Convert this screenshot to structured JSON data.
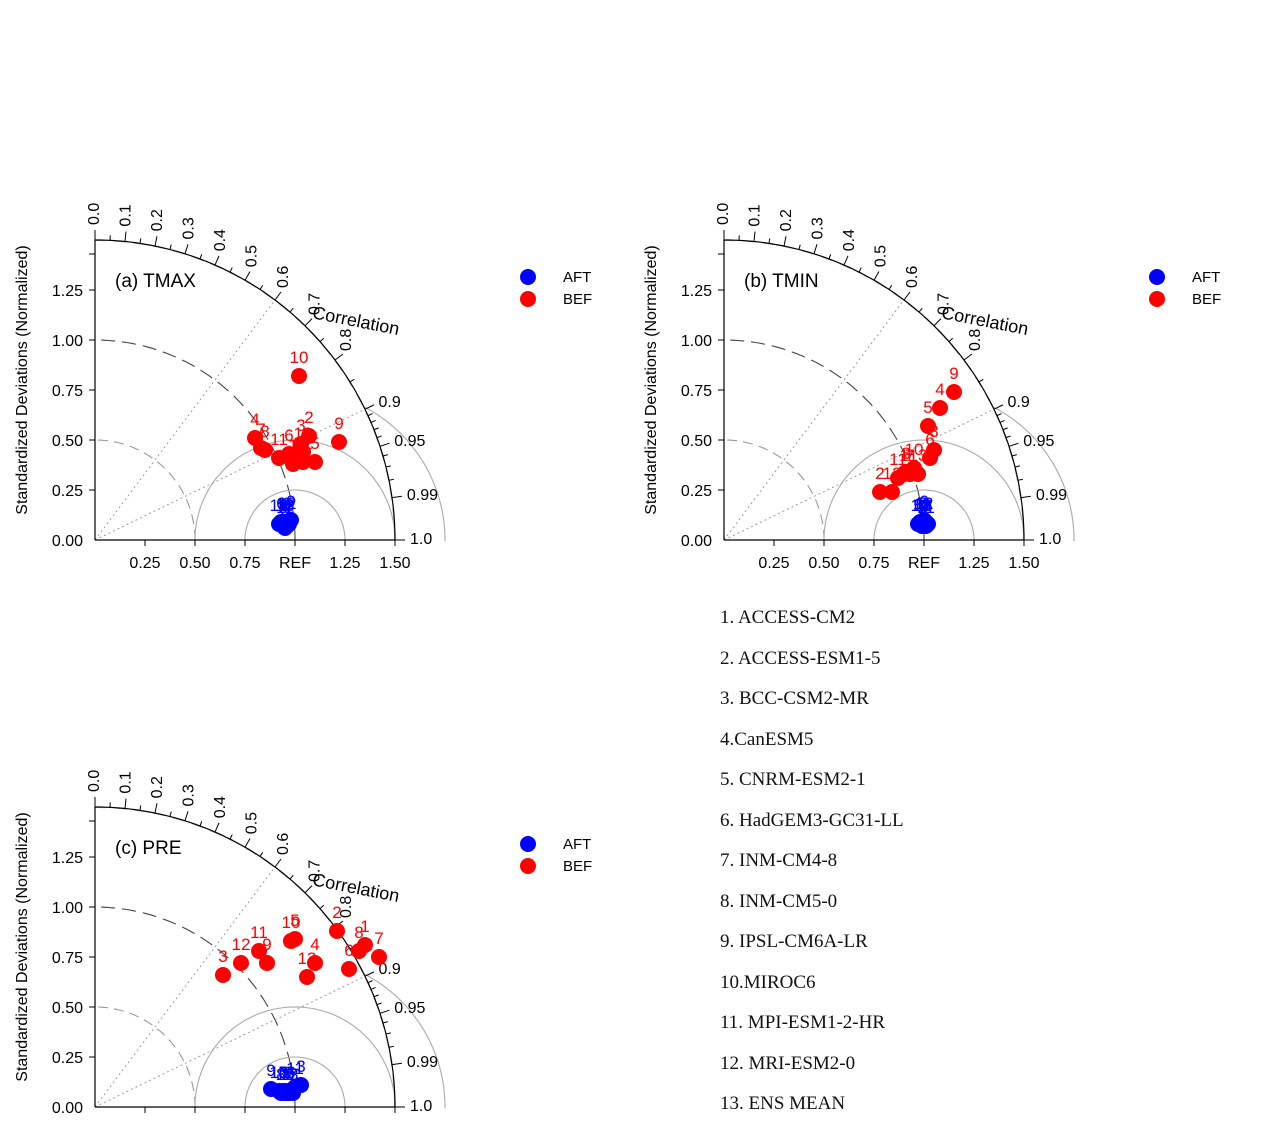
{
  "charts": {
    "ylabel": "Standardized Deviations (Normalized)",
    "corr_label": "Correlation",
    "ref_label": "REF",
    "std_ticks": [
      "0.25",
      "0.50",
      "0.75",
      "1.00",
      "1.25"
    ],
    "x_ticks": [
      "0.00",
      "0.25",
      "0.50",
      "0.75",
      "REF",
      "1.25",
      "1.50"
    ],
    "corr_ticks": [
      "0.0",
      "0.1",
      "0.2",
      "0.3",
      "0.4",
      "0.5",
      "0.6",
      "0.7",
      "0.8",
      "0.9",
      "0.95",
      "0.99",
      "1.0"
    ],
    "legend": [
      {
        "name": "AFT",
        "color": "#0000ff"
      },
      {
        "name": "BEF",
        "color": "#ff0000"
      }
    ]
  },
  "chart_data": [
    {
      "type": "scatter",
      "title": "(a) TMAX",
      "xlim": [
        0,
        1.5
      ],
      "ylim": [
        0,
        1.5
      ],
      "series": [
        {
          "name": "AFT",
          "color": "#0000ff",
          "points": [
            {
              "label": "1",
              "x": 0.95,
              "y": 0.08
            },
            {
              "label": "2",
              "x": 0.96,
              "y": 0.09
            },
            {
              "label": "3",
              "x": 0.94,
              "y": 0.07
            },
            {
              "label": "4",
              "x": 0.96,
              "y": 0.07
            },
            {
              "label": "5",
              "x": 0.95,
              "y": 0.06
            },
            {
              "label": "6",
              "x": 0.93,
              "y": 0.09
            },
            {
              "label": "7",
              "x": 0.97,
              "y": 0.08
            },
            {
              "label": "8",
              "x": 0.94,
              "y": 0.08
            },
            {
              "label": "9",
              "x": 0.98,
              "y": 0.1
            },
            {
              "label": "10",
              "x": 0.92,
              "y": 0.08
            },
            {
              "label": "11",
              "x": 0.95,
              "y": 0.07
            },
            {
              "label": "12",
              "x": 0.96,
              "y": 0.09
            },
            {
              "label": "13",
              "x": 0.95,
              "y": 0.08
            }
          ]
        },
        {
          "name": "BEF",
          "color": "#ff0000",
          "points": [
            {
              "label": "1",
              "x": 0.99,
              "y": 0.38
            },
            {
              "label": "2",
              "x": 1.07,
              "y": 0.52
            },
            {
              "label": "3",
              "x": 1.03,
              "y": 0.48
            },
            {
              "label": "4",
              "x": 0.8,
              "y": 0.51
            },
            {
              "label": "5",
              "x": 1.1,
              "y": 0.39
            },
            {
              "label": "6",
              "x": 0.97,
              "y": 0.43
            },
            {
              "label": "7",
              "x": 0.83,
              "y": 0.46
            },
            {
              "label": "8",
              "x": 0.85,
              "y": 0.45
            },
            {
              "label": "9",
              "x": 1.22,
              "y": 0.49
            },
            {
              "label": "10",
              "x": 1.02,
              "y": 0.82
            },
            {
              "label": "11",
              "x": 0.92,
              "y": 0.41
            },
            {
              "label": "12",
              "x": 1.04,
              "y": 0.39
            },
            {
              "label": "13",
              "x": 1.04,
              "y": 0.44
            }
          ]
        }
      ]
    },
    {
      "type": "scatter",
      "title": "(b) TMIN",
      "xlim": [
        0,
        1.5
      ],
      "ylim": [
        0,
        1.5
      ],
      "series": [
        {
          "name": "AFT",
          "color": "#0000ff",
          "points": [
            {
              "label": "1",
              "x": 0.98,
              "y": 0.09
            },
            {
              "label": "2",
              "x": 1.0,
              "y": 0.08
            },
            {
              "label": "3",
              "x": 0.99,
              "y": 0.07
            },
            {
              "label": "4",
              "x": 1.01,
              "y": 0.09
            },
            {
              "label": "5",
              "x": 0.97,
              "y": 0.08
            },
            {
              "label": "6",
              "x": 1.0,
              "y": 0.1
            },
            {
              "label": "7",
              "x": 0.99,
              "y": 0.09
            },
            {
              "label": "8",
              "x": 1.02,
              "y": 0.08
            },
            {
              "label": "9",
              "x": 1.0,
              "y": 0.07
            },
            {
              "label": "10",
              "x": 0.98,
              "y": 0.08
            },
            {
              "label": "11",
              "x": 1.01,
              "y": 0.07
            },
            {
              "label": "12",
              "x": 1.0,
              "y": 0.09
            },
            {
              "label": "13",
              "x": 0.99,
              "y": 0.08
            }
          ]
        },
        {
          "name": "BEF",
          "color": "#ff0000",
          "points": [
            {
              "label": "1",
              "x": 0.9,
              "y": 0.33
            },
            {
              "label": "2",
              "x": 0.78,
              "y": 0.24
            },
            {
              "label": "3",
              "x": 1.05,
              "y": 0.45
            },
            {
              "label": "4",
              "x": 1.08,
              "y": 0.66
            },
            {
              "label": "5",
              "x": 1.02,
              "y": 0.57
            },
            {
              "label": "6",
              "x": 1.03,
              "y": 0.41
            },
            {
              "label": "7",
              "x": 0.93,
              "y": 0.33
            },
            {
              "label": "8",
              "x": 0.91,
              "y": 0.34
            },
            {
              "label": "9",
              "x": 1.15,
              "y": 0.74
            },
            {
              "label": "10",
              "x": 0.95,
              "y": 0.36
            },
            {
              "label": "11",
              "x": 0.87,
              "y": 0.31
            },
            {
              "label": "12",
              "x": 0.84,
              "y": 0.24
            },
            {
              "label": "13",
              "x": 0.97,
              "y": 0.33
            }
          ]
        }
      ]
    },
    {
      "type": "scatter",
      "title": "(c) PRE",
      "xlim": [
        0,
        1.5
      ],
      "ylim": [
        0,
        1.5
      ],
      "series": [
        {
          "name": "AFT",
          "color": "#0000ff",
          "points": [
            {
              "label": "1",
              "x": 0.95,
              "y": 0.08
            },
            {
              "label": "2",
              "x": 0.97,
              "y": 0.08
            },
            {
              "label": "3",
              "x": 1.03,
              "y": 0.11
            },
            {
              "label": "4",
              "x": 0.96,
              "y": 0.07
            },
            {
              "label": "5",
              "x": 0.94,
              "y": 0.08
            },
            {
              "label": "6",
              "x": 0.98,
              "y": 0.08
            },
            {
              "label": "7",
              "x": 0.99,
              "y": 0.07
            },
            {
              "label": "8",
              "x": 0.93,
              "y": 0.07
            },
            {
              "label": "9",
              "x": 0.88,
              "y": 0.09
            },
            {
              "label": "10",
              "x": 0.92,
              "y": 0.08
            },
            {
              "label": "11",
              "x": 1.0,
              "y": 0.1
            },
            {
              "label": "12",
              "x": 0.95,
              "y": 0.07
            },
            {
              "label": "13",
              "x": 0.97,
              "y": 0.07
            }
          ]
        },
        {
          "name": "BEF",
          "color": "#ff0000",
          "points": [
            {
              "label": "1",
              "x": 1.35,
              "y": 0.81
            },
            {
              "label": "2",
              "x": 1.21,
              "y": 0.88
            },
            {
              "label": "3",
              "x": 0.64,
              "y": 0.66
            },
            {
              "label": "4",
              "x": 1.1,
              "y": 0.72
            },
            {
              "label": "5",
              "x": 1.0,
              "y": 0.84
            },
            {
              "label": "6",
              "x": 1.27,
              "y": 0.69
            },
            {
              "label": "7",
              "x": 1.42,
              "y": 0.75
            },
            {
              "label": "8",
              "x": 1.32,
              "y": 0.78
            },
            {
              "label": "9",
              "x": 0.86,
              "y": 0.72
            },
            {
              "label": "10",
              "x": 0.98,
              "y": 0.83
            },
            {
              "label": "11",
              "x": 0.82,
              "y": 0.78
            },
            {
              "label": "12",
              "x": 0.73,
              "y": 0.72
            },
            {
              "label": "13",
              "x": 1.06,
              "y": 0.65
            }
          ]
        }
      ]
    }
  ],
  "models": [
    "1. ACCESS-CM2",
    "2. ACCESS-ESM1-5",
    "3. BCC-CSM2-MR",
    "4.CanESM5",
    "5. CNRM-ESM2-1",
    "6. HadGEM3-GC31-LL",
    "7. INM-CM4-8",
    "8. INM-CM5-0",
    "9. IPSL-CM6A-LR",
    "10.MIROC6",
    "11. MPI-ESM1-2-HR",
    "12. MRI-ESM2-0",
    "13. ENS MEAN"
  ]
}
